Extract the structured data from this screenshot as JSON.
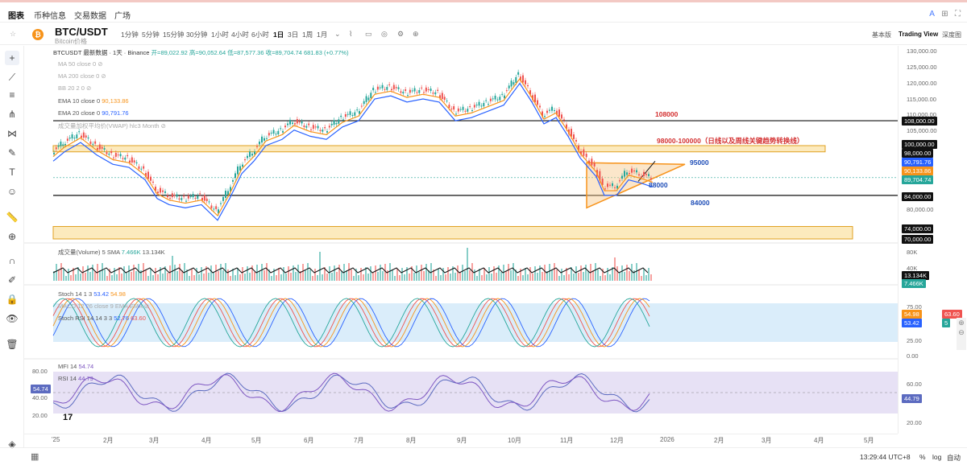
{
  "tabs": [
    "图表",
    "币种信息",
    "交易数据",
    "广场"
  ],
  "symbol": {
    "name": "BTC/USDT",
    "subtitle": "Bitcoin价格"
  },
  "timeframes": [
    "1分钟",
    "5分钟",
    "15分钟",
    "30分钟",
    "1小时",
    "4小时",
    "6小时",
    "1日",
    "3日",
    "1周",
    "1月"
  ],
  "active_timeframe": "1日",
  "view_modes": [
    "基本版",
    "Trading View",
    "深度图"
  ],
  "header": {
    "title": "BTCUSDT 最新数据 · 1天 · Binance",
    "open": "开=89,022.92",
    "high": "高=90,052.64",
    "low": "低=87,577.36",
    "close": "收=89,704.74",
    "change": "681.83 (+0.77%)"
  },
  "indicators": {
    "ma50": "MA 50 close 0",
    "ma200": "MA 200 close 0",
    "bb": "BB 20 2 0",
    "ema10": "EMA 10 close 0",
    "ema10_val": "90,133.86",
    "ema20": "EMA 20 close 0",
    "ema20_val": "90,791.76",
    "vwap": "成交量加权平均价(VWAP) hlc3 Month",
    "volume": "成交量(Volume) 5 SMA",
    "volume_v1": "7.466K",
    "volume_v2": "13.134K",
    "stoch": "Stoch 14 1 3",
    "stoch_v1": "53.42",
    "stoch_v2": "54.98",
    "macd": "MACD 12 26 close 9 EMA EMA",
    "stochrsi": "Stoch RSI 14 14 3 3",
    "stochrsi_v1": "52.76",
    "stochrsi_v2": "63.60",
    "mfi": "MFI 14",
    "mfi_v": "54.74",
    "rsi": "RSI 14",
    "rsi_v": "44.79"
  },
  "annotations": {
    "a108": "108000",
    "a98": "98000-100000（日线以及周线关键趋势转换线）",
    "a95": "95000",
    "a88": "88000",
    "a84": "84000"
  },
  "yaxis_main": [
    "130,000.00",
    "125,000.00",
    "120,000.00",
    "115,000.00",
    "110,000.00",
    "105,000.00",
    "95,000.00",
    "85,000.00",
    "80,000.00",
    "75,000.00"
  ],
  "price_tags": {
    "p108": "108,000.00",
    "p100": "100,000.00",
    "p98": "98,000.00",
    "p90791": "90,791.76",
    "p90133": "90,133.86",
    "p89704": "89,704.74",
    "p84": "84,000.00",
    "p74": "74,000.00",
    "p70": "70,000.00"
  },
  "yaxis_vol": [
    "80K",
    "40K"
  ],
  "vol_tags": {
    "v1": "13.134K",
    "v2": "7.466K"
  },
  "yaxis_stoch": [
    "75.00",
    "25.00",
    "0.00"
  ],
  "stoch_tags": {
    "s1": "54.98",
    "s2": "53.42",
    "s3": "63.60",
    "s4": "5"
  },
  "yaxis_rsi": [
    "80.00",
    "60.00",
    "40.00",
    "20.00"
  ],
  "rsi_tags": {
    "r1": "44.79"
  },
  "left_tags": {
    "mfi": "54.74"
  },
  "left_yaxis": [
    "80.00",
    "60.00",
    "40.00",
    "20.00"
  ],
  "xaxis": [
    "'25",
    "2月",
    "3月",
    "4月",
    "5月",
    "6月",
    "7月",
    "8月",
    "9月",
    "10月",
    "11月",
    "12月",
    "2026",
    "2月",
    "3月",
    "4月",
    "5月"
  ],
  "status": {
    "time": "13:29:44 UTC+8",
    "percent": "%",
    "log": "log",
    "auto": "自动"
  },
  "colors": {
    "up": "#26a69a",
    "down": "#ef5350",
    "ema10": "#f7931a",
    "ema20": "#2962ff",
    "band": "#f5c242",
    "annotation_red": "#d32f2f",
    "annotation_blue": "#1e4db7"
  }
}
